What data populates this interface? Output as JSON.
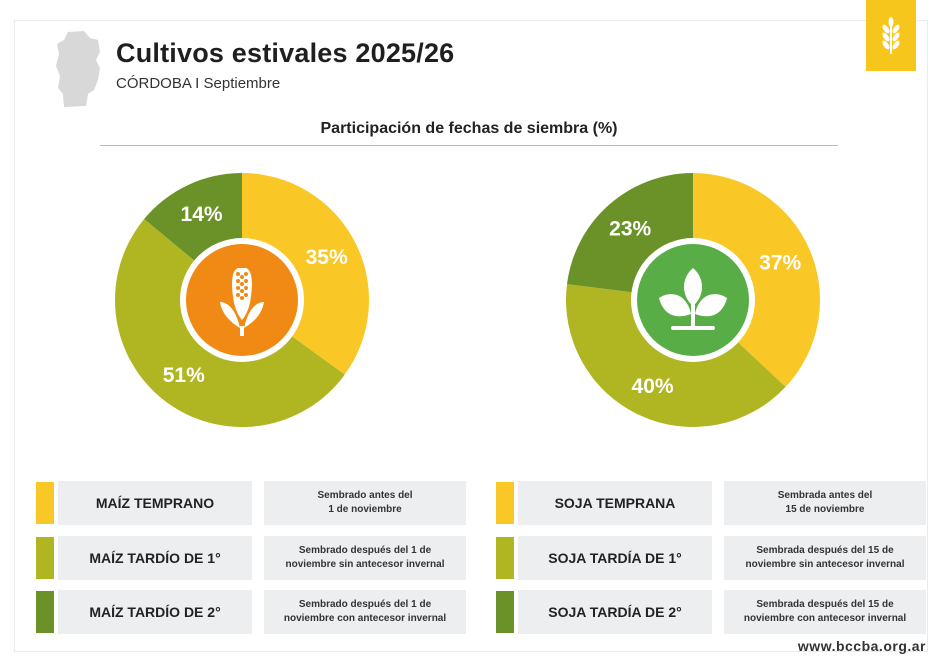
{
  "header": {
    "title": "Cultivos estivales 2025/26",
    "subtitle": "CÓRDOBA I Septiembre"
  },
  "section_title": "Participación de fechas de siembra (%)",
  "colors": {
    "temprano": "#f9c826",
    "tardio_1": "#b0b621",
    "tardio_2": "#6b9129",
    "maiz_center": "#f08a14",
    "soja_center": "#59ad47",
    "panel": "#edeef0",
    "badge": "#f7c61c"
  },
  "chart_data": [
    {
      "type": "pie",
      "title": "Maíz",
      "center_icon": "corn-icon",
      "categories": [
        "MAÍZ TEMPRANO",
        "MAÍZ TARDÍO DE 1°",
        "MAÍZ TARDÍO DE 2°"
      ],
      "values": [
        35,
        51,
        14
      ],
      "labels": [
        "35%",
        "51%",
        "14%"
      ]
    },
    {
      "type": "pie",
      "title": "Soja",
      "center_icon": "sprout-icon",
      "categories": [
        "SOJA TEMPRANA",
        "SOJA TARDÍA DE 1°",
        "SOJA TARDÍA DE 2°"
      ],
      "values": [
        37,
        40,
        23
      ],
      "labels": [
        "37%",
        "40%",
        "23%"
      ]
    }
  ],
  "legend": {
    "maiz": [
      {
        "label": "MAÍZ TEMPRANO",
        "desc": "Sembrado antes del\n1 de noviembre"
      },
      {
        "label": "MAÍZ TARDÍO DE 1°",
        "desc": "Sembrado después del 1 de\nnoviembre sin antecesor invernal"
      },
      {
        "label": "MAÍZ TARDÍO DE 2°",
        "desc": "Sembrado después del 1 de\nnoviembre con antecesor invernal"
      }
    ],
    "soja": [
      {
        "label": "SOJA TEMPRANA",
        "desc": "Sembrada antes del\n15 de noviembre"
      },
      {
        "label": "SOJA TARDÍA DE 1°",
        "desc": "Sembrada después del 15 de\nnoviembre sin antecesor invernal"
      },
      {
        "label": "SOJA TARDÍA DE 2°",
        "desc": "Sembrada después del 15 de\nnoviembre con antecesor invernal"
      }
    ]
  },
  "footer": "www.bccba.org.ar"
}
